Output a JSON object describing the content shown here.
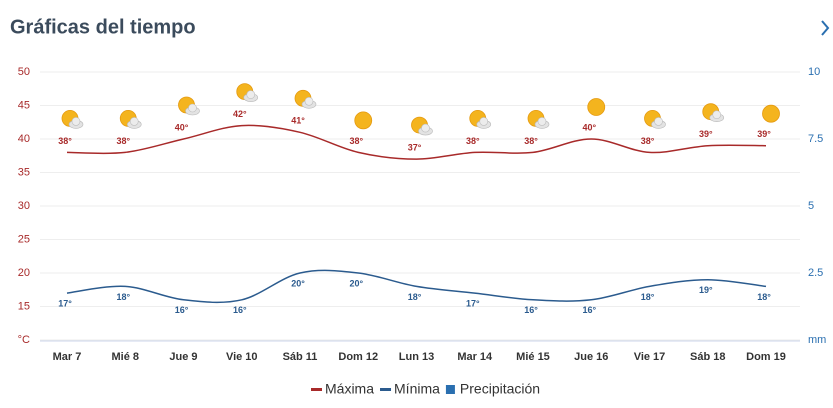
{
  "chart_data": {
    "type": "line",
    "title": "Gráficas del tiempo",
    "categories": [
      "Mar 7",
      "Mié 8",
      "Jue 9",
      "Vie 10",
      "Sáb 11",
      "Dom 12",
      "Lun 13",
      "Mar 14",
      "Mié 15",
      "Jue 16",
      "Vie 17",
      "Sáb 18",
      "Dom 19"
    ],
    "series": [
      {
        "name": "Máxima",
        "color": "#a82a2a",
        "values": [
          38,
          38,
          40,
          42,
          41,
          38,
          37,
          38,
          38,
          40,
          38,
          39,
          39
        ],
        "value_labels": [
          "38°",
          "38°",
          "40°",
          "42°",
          "41°",
          "38°",
          "37°",
          "38°",
          "38°",
          "40°",
          "38°",
          "39°",
          "39°"
        ]
      },
      {
        "name": "Mínima",
        "color": "#2b5b8e",
        "values": [
          17,
          18,
          16,
          16,
          20,
          20,
          18,
          17,
          16,
          16,
          18,
          19,
          18
        ],
        "value_labels": [
          "17°",
          "18°",
          "16°",
          "16°",
          "20°",
          "20°",
          "18°",
          "17°",
          "16°",
          "16°",
          "18°",
          "19°",
          "18°"
        ]
      },
      {
        "name": "Precipitación",
        "color": "#2a6fb0",
        "axis": "y2",
        "values": [
          0,
          0,
          0,
          0,
          0,
          0,
          0,
          0,
          0,
          0,
          0,
          0,
          0
        ]
      }
    ],
    "ylim": [
      10,
      50
    ],
    "yticks": [
      {
        "value": 10,
        "label": "°C"
      },
      15,
      20,
      25,
      30,
      35,
      40,
      45,
      50
    ],
    "y2lim": [
      0,
      10
    ],
    "y2ticks": [
      {
        "value": 0,
        "label": "mm"
      },
      2.5,
      5,
      7.5,
      10
    ],
    "grid": true,
    "legend": "bottom"
  }
}
